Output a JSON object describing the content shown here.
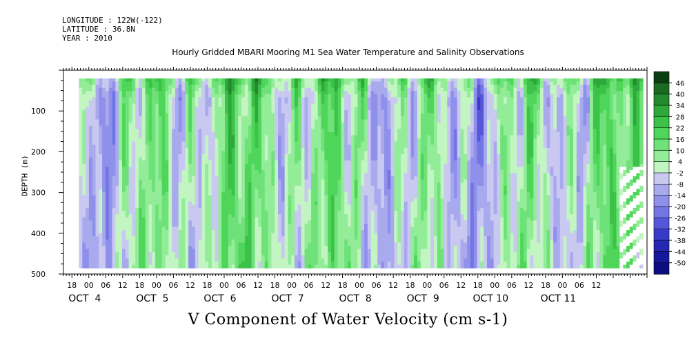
{
  "header": {
    "longitude": "LONGITUDE : 122W(-122)",
    "latitude": "LATITUDE : 36.8N",
    "year": "YEAR : 2010"
  },
  "title": "Hourly Gridded MBARI Mooring M1 Sea Water Temperature and Salinity Observations",
  "chart_data": {
    "type": "heatmap",
    "title": "Hourly Gridded MBARI Mooring M1 Sea Water Temperature and Salinity Observations",
    "xlabel": "V Component of Water Velocity (cm s-1)",
    "ylabel": "DEPTH (m)",
    "y_ticks": [
      100,
      200,
      300,
      400,
      500
    ],
    "y_range": [
      500,
      0
    ],
    "data_depth_range": [
      20,
      485
    ],
    "x_range_hours": [
      15,
      222
    ],
    "x_hour_ticks": [
      "18",
      "00",
      "06",
      "12",
      "18",
      "00",
      "06",
      "12",
      "18",
      "00",
      "06",
      "12",
      "18",
      "00",
      "06",
      "12",
      "18",
      "00",
      "06",
      "12",
      "18",
      "00",
      "06",
      "12",
      "18",
      "00",
      "06",
      "12",
      "18",
      "00",
      "06",
      "12"
    ],
    "x_day_labels": [
      "OCT  4",
      "OCT  5",
      "OCT  6",
      "OCT  7",
      "OCT  8",
      "OCT  9",
      "OCT 10",
      "OCT 11"
    ],
    "colorbar": {
      "levels": [
        48,
        46,
        40,
        34,
        28,
        22,
        16,
        10,
        4,
        -2,
        -8,
        -14,
        -20,
        -26,
        -32,
        -38,
        -44,
        -50
      ],
      "labels": [
        "46",
        "40",
        "34",
        "28",
        "22",
        "16",
        "10",
        "4",
        "-2",
        "-8",
        "-14",
        "-20",
        "-26",
        "-32",
        "-38",
        "-44",
        "-50"
      ],
      "colors": [
        "#0b3d12",
        "#1a6a22",
        "#24892e",
        "#2fa83b",
        "#3cc248",
        "#4fd65a",
        "#6ee278",
        "#92ec98",
        "#c2f5c2",
        "#c8c8f0",
        "#a9aaee",
        "#8f90ea",
        "#7375e4",
        "#5557d8",
        "#383bc9",
        "#2428b3",
        "#15189a",
        "#0c0d7e"
      ]
    },
    "note": "Contour field of hourly meridional velocity vs. depth; values roughly between -20 and +40 cm/s, green = northward (positive), blue = southward (negative). Data gap (white) near the bottom right at end of Oct 11."
  }
}
